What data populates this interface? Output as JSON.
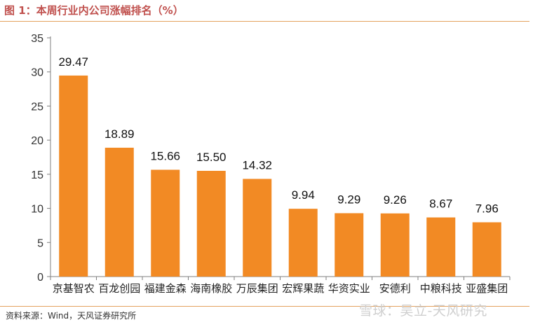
{
  "header": {
    "title": "图 1：本周行业内公司涨幅排名（%）"
  },
  "footer": {
    "source": "资料来源：Wind，天风证券研究所",
    "watermark": "雪球：吴立-天风研究"
  },
  "colors": {
    "bar": "#F28A24",
    "axis": "#7F7F7F",
    "rule": "#E3A15E",
    "title": "#C0504D"
  },
  "chart_data": {
    "type": "bar",
    "title": "",
    "xlabel": "",
    "ylabel": "",
    "categories": [
      "京基智农",
      "百龙创园",
      "福建金森",
      "海南橡胶",
      "万辰集团",
      "宏辉果蔬",
      "华资实业",
      "安德利",
      "中粮科技",
      "亚盛集团"
    ],
    "values": [
      29.47,
      18.89,
      15.66,
      15.5,
      14.32,
      9.94,
      9.29,
      9.26,
      8.67,
      7.96
    ],
    "value_labels": [
      "29.47",
      "18.89",
      "15.66",
      "15.50",
      "14.32",
      "9.94",
      "9.29",
      "9.26",
      "8.67",
      "7.96"
    ],
    "ylim": [
      0,
      35
    ],
    "yticks": [
      0,
      5,
      10,
      15,
      20,
      25,
      30,
      35
    ],
    "grid": false,
    "legend": "none"
  }
}
